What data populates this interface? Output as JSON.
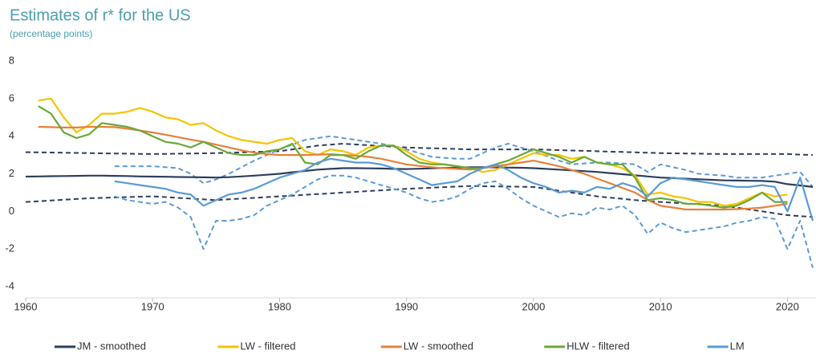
{
  "chart_data": {
    "type": "line",
    "title": "Estimates of r* for the US",
    "subtitle": "(percentage points)",
    "xlim": [
      1960,
      2022.25
    ],
    "xticks": [
      1960,
      1970,
      1980,
      1990,
      2000,
      2010,
      2020
    ],
    "ylim": [
      -4,
      8
    ],
    "yticks": [
      -4,
      -2,
      0,
      2,
      4,
      6,
      8
    ],
    "grid": false,
    "legend": "bottom",
    "x": [
      1960,
      1961,
      1962,
      1963,
      1964,
      1965,
      1966,
      1967,
      1968,
      1969,
      1970,
      1971,
      1972,
      1973,
      1974,
      1975,
      1976,
      1977,
      1978,
      1979,
      1980,
      1981,
      1982,
      1983,
      1984,
      1985,
      1986,
      1987,
      1988,
      1989,
      1990,
      1991,
      1992,
      1993,
      1994,
      1995,
      1996,
      1997,
      1998,
      1999,
      2000,
      2001,
      2002,
      2003,
      2004,
      2005,
      2006,
      2007,
      2008,
      2009,
      2010,
      2011,
      2012,
      2013,
      2014,
      2015,
      2016,
      2017,
      2018,
      2019,
      2020,
      2021,
      2022
    ],
    "series": [
      {
        "name": "JM - smoothed",
        "color": "#2e3f5e",
        "dashed": false,
        "values": [
          1.85,
          1.86,
          1.87,
          1.88,
          1.89,
          1.9,
          1.9,
          1.89,
          1.88,
          1.86,
          1.85,
          1.84,
          1.83,
          1.82,
          1.81,
          1.8,
          1.82,
          1.86,
          1.9,
          1.95,
          2.0,
          2.08,
          2.15,
          2.22,
          2.26,
          2.3,
          2.3,
          2.29,
          2.28,
          2.26,
          2.25,
          2.27,
          2.29,
          2.31,
          2.33,
          2.35,
          2.35,
          2.34,
          2.33,
          2.32,
          2.3,
          2.26,
          2.22,
          2.18,
          2.14,
          2.1,
          2.04,
          1.98,
          1.92,
          1.86,
          1.8,
          1.77,
          1.74,
          1.71,
          1.68,
          1.65,
          1.64,
          1.63,
          1.62,
          1.58,
          1.45,
          1.38,
          1.3
        ]
      },
      {
        "name": "LW - filtered",
        "color": "#f5c400",
        "dashed": false,
        "values": [
          null,
          5.9,
          6.0,
          5.0,
          4.2,
          4.6,
          5.2,
          5.2,
          5.3,
          5.5,
          5.3,
          5.0,
          4.9,
          4.6,
          4.7,
          4.3,
          4.0,
          3.8,
          3.7,
          3.6,
          3.8,
          3.9,
          3.2,
          3.0,
          3.3,
          3.2,
          3.0,
          3.4,
          3.5,
          3.5,
          3.2,
          2.8,
          2.6,
          2.5,
          2.4,
          2.3,
          2.1,
          2.2,
          2.5,
          2.8,
          3.1,
          3.0,
          3.0,
          2.8,
          2.9,
          2.6,
          2.5,
          2.3,
          1.9,
          0.9,
          1.0,
          0.8,
          0.7,
          0.5,
          0.5,
          0.3,
          0.4,
          0.7,
          1.0,
          0.8,
          0.9,
          null,
          null
        ]
      },
      {
        "name": "LW - smoothed",
        "color": "#e8803a",
        "dashed": false,
        "values": [
          null,
          4.5,
          4.48,
          4.46,
          4.46,
          4.5,
          4.5,
          4.48,
          4.4,
          4.3,
          4.2,
          4.08,
          3.95,
          3.82,
          3.7,
          3.55,
          3.4,
          3.25,
          3.12,
          3.05,
          3.0,
          3.0,
          3.0,
          3.02,
          3.04,
          3.0,
          2.96,
          2.9,
          2.8,
          2.65,
          2.5,
          2.42,
          2.35,
          2.3,
          2.26,
          2.22,
          2.3,
          2.4,
          2.5,
          2.6,
          2.7,
          2.55,
          2.4,
          2.2,
          2.0,
          1.75,
          1.5,
          1.25,
          1.0,
          0.6,
          0.3,
          0.2,
          0.1,
          0.1,
          0.1,
          0.1,
          0.12,
          0.15,
          0.2,
          0.3,
          0.4,
          null,
          null
        ]
      },
      {
        "name": "HLW - filtered",
        "color": "#6aa838",
        "dashed": false,
        "values": [
          null,
          5.6,
          5.2,
          4.2,
          3.9,
          4.1,
          4.7,
          4.6,
          4.5,
          4.3,
          4.0,
          3.7,
          3.6,
          3.4,
          3.7,
          3.4,
          3.1,
          3.0,
          3.0,
          3.2,
          3.3,
          3.6,
          2.6,
          2.5,
          3.0,
          3.0,
          2.8,
          3.2,
          3.5,
          3.5,
          3.0,
          2.6,
          2.5,
          2.5,
          2.4,
          2.3,
          2.3,
          2.5,
          2.7,
          3.0,
          3.3,
          3.1,
          2.9,
          2.6,
          2.9,
          2.6,
          2.5,
          2.5,
          1.8,
          0.6,
          0.7,
          0.6,
          0.4,
          0.4,
          0.3,
          0.2,
          0.3,
          0.6,
          1.0,
          0.5,
          0.5,
          null,
          null
        ]
      },
      {
        "name": "LM",
        "color": "#5b9bd5",
        "dashed": false,
        "values": [
          null,
          null,
          null,
          null,
          null,
          null,
          null,
          1.6,
          1.5,
          1.4,
          1.3,
          1.2,
          1.0,
          0.9,
          0.3,
          0.6,
          0.9,
          1.0,
          1.2,
          1.5,
          1.8,
          2.0,
          2.2,
          2.6,
          2.8,
          2.7,
          2.6,
          2.6,
          2.5,
          2.3,
          2.0,
          1.7,
          1.4,
          1.5,
          1.6,
          2.0,
          2.3,
          2.5,
          2.2,
          1.8,
          1.5,
          1.3,
          1.0,
          1.1,
          1.0,
          1.3,
          1.2,
          1.5,
          1.3,
          0.8,
          1.5,
          1.8,
          1.7,
          1.6,
          1.5,
          1.4,
          1.3,
          1.3,
          1.4,
          1.3,
          0.0,
          1.8,
          -0.5
        ]
      },
      {
        "color": "#2e3f5e",
        "dashed": true,
        "values": [
          3.15,
          3.14,
          3.13,
          3.12,
          3.11,
          3.1,
          3.09,
          3.08,
          3.07,
          3.06,
          3.05,
          3.06,
          3.07,
          3.08,
          3.09,
          3.1,
          3.12,
          3.14,
          3.16,
          3.18,
          3.2,
          3.3,
          3.4,
          3.5,
          3.55,
          3.6,
          3.56,
          3.52,
          3.48,
          3.44,
          3.4,
          3.38,
          3.36,
          3.34,
          3.32,
          3.3,
          3.3,
          3.3,
          3.3,
          3.3,
          3.3,
          3.28,
          3.26,
          3.24,
          3.22,
          3.2,
          3.18,
          3.16,
          3.14,
          3.12,
          3.1,
          3.09,
          3.08,
          3.07,
          3.06,
          3.05,
          3.05,
          3.05,
          3.05,
          3.05,
          3.05,
          3.02,
          3.0
        ]
      },
      {
        "color": "#2e3f5e",
        "dashed": true,
        "values": [
          0.5,
          0.54,
          0.58,
          0.62,
          0.66,
          0.7,
          0.72,
          0.74,
          0.76,
          0.78,
          0.8,
          0.76,
          0.72,
          0.68,
          0.64,
          0.6,
          0.64,
          0.68,
          0.72,
          0.76,
          0.8,
          0.84,
          0.88,
          0.92,
          0.96,
          1.0,
          1.04,
          1.08,
          1.12,
          1.16,
          1.2,
          1.23,
          1.26,
          1.29,
          1.32,
          1.35,
          1.34,
          1.33,
          1.32,
          1.31,
          1.3,
          1.2,
          1.1,
          1.0,
          0.9,
          0.8,
          0.73,
          0.67,
          0.6,
          0.55,
          0.5,
          0.46,
          0.42,
          0.38,
          0.34,
          0.3,
          0.2,
          0.1,
          0.0,
          -0.1,
          -0.2,
          -0.25,
          -0.3
        ]
      },
      {
        "color": "#5b9bd5",
        "dashed": true,
        "values": [
          null,
          null,
          null,
          null,
          null,
          null,
          null,
          2.4,
          2.4,
          2.4,
          2.4,
          2.35,
          2.3,
          2.0,
          1.5,
          1.7,
          2.0,
          2.35,
          2.7,
          3.0,
          3.3,
          3.55,
          3.8,
          3.9,
          4.0,
          3.9,
          3.8,
          3.7,
          3.6,
          3.45,
          3.3,
          3.1,
          2.9,
          2.85,
          2.8,
          2.8,
          3.1,
          3.4,
          3.6,
          3.4,
          3.2,
          2.95,
          2.7,
          2.5,
          2.55,
          2.6,
          2.6,
          2.55,
          2.5,
          2.1,
          2.5,
          2.35,
          2.2,
          2.0,
          1.95,
          1.9,
          1.8,
          1.8,
          1.8,
          1.9,
          2.0,
          2.1,
          1.3
        ]
      },
      {
        "color": "#5b9bd5",
        "dashed": true,
        "values": [
          null,
          null,
          null,
          null,
          null,
          null,
          null,
          0.8,
          0.6,
          0.5,
          0.4,
          0.5,
          0.2,
          -0.3,
          -2.0,
          -0.5,
          -0.5,
          -0.4,
          -0.2,
          0.3,
          0.6,
          0.9,
          1.3,
          1.7,
          1.9,
          1.9,
          1.8,
          1.6,
          1.4,
          1.2,
          1.0,
          0.7,
          0.5,
          0.6,
          0.8,
          1.2,
          1.5,
          1.6,
          1.2,
          0.7,
          0.3,
          0.0,
          -0.3,
          -0.1,
          -0.2,
          0.2,
          0.1,
          0.3,
          -0.2,
          -1.2,
          -0.6,
          -0.9,
          -1.1,
          -1.0,
          -0.9,
          -0.8,
          -0.6,
          -0.5,
          -0.3,
          -0.4,
          -2.0,
          -0.5,
          -3.0
        ]
      }
    ]
  }
}
